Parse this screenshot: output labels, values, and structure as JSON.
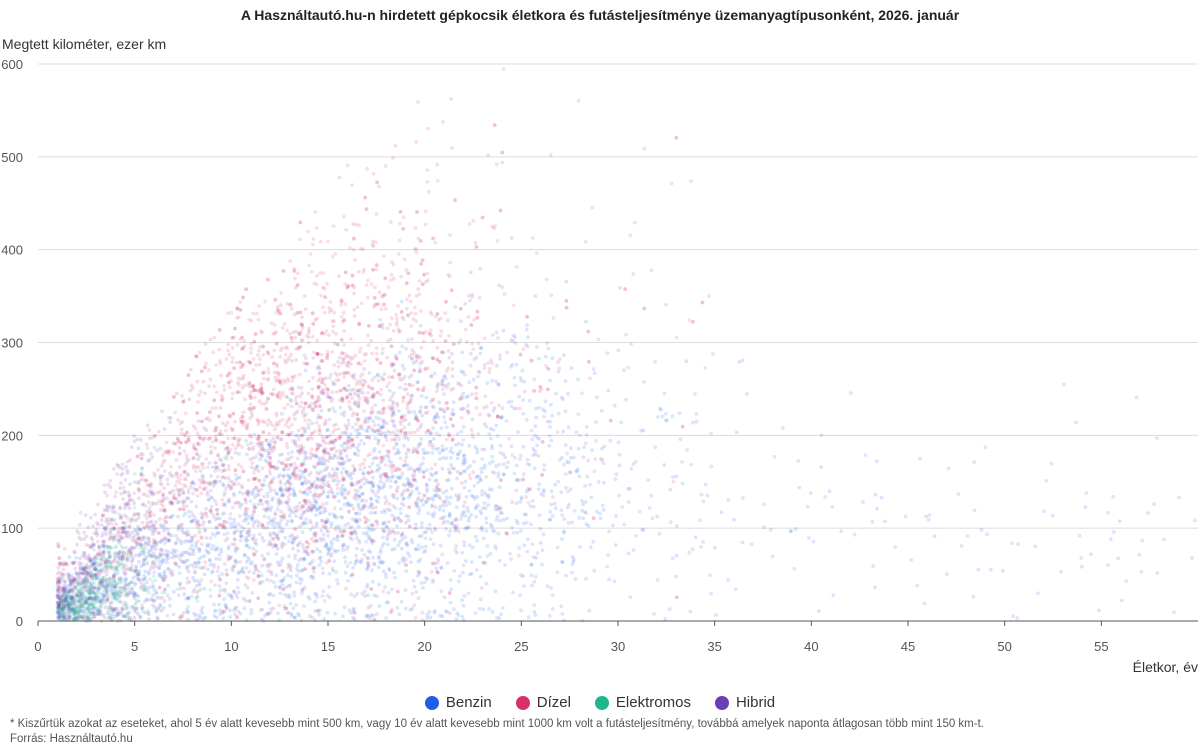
{
  "chart_data": {
    "type": "scatter",
    "title": "A Használtautó.hu-n hirdetett gépkocsik életkora és futásteljesítménye üzemanyagtípusonként, 2026. január",
    "xlabel": "Életkor, év",
    "ylabel": "Megtett kilométer, ezer km",
    "xlim": [
      0,
      60
    ],
    "ylim": [
      0,
      600
    ],
    "x_ticks": [
      "0",
      "5",
      "10",
      "15",
      "20",
      "25",
      "30",
      "35",
      "40",
      "45",
      "50",
      "55"
    ],
    "y_ticks": [
      "0",
      "100",
      "200",
      "300",
      "400",
      "500",
      "600"
    ],
    "grid": "horizontal",
    "legend_position": "bottom",
    "series": [
      {
        "name": "Benzin",
        "color": "#1f5fe6",
        "distribution": {
          "x_range": [
            1,
            60
          ],
          "x_peak": 16,
          "x_spread": 7,
          "y_center_at_peak": 130,
          "y_spread_at_peak": 70,
          "points_per_x": [
            {
              "x": 2,
              "y_center": 25
            },
            {
              "x": 5,
              "y_center": 50
            },
            {
              "x": 10,
              "y_center": 95
            },
            {
              "x": 15,
              "y_center": 125
            },
            {
              "x": 20,
              "y_center": 150
            },
            {
              "x": 25,
              "y_center": 150
            },
            {
              "x": 35,
              "y_center": 130
            },
            {
              "x": 50,
              "y_center": 100
            }
          ]
        }
      },
      {
        "name": "Dízel",
        "color": "#d6306f",
        "distribution": {
          "x_range": [
            1,
            35
          ],
          "x_peak": 14,
          "x_spread": 5,
          "y_center_at_peak": 215,
          "y_spread_at_peak": 90,
          "points_per_x": [
            {
              "x": 2,
              "y_center": 40
            },
            {
              "x": 5,
              "y_center": 110
            },
            {
              "x": 10,
              "y_center": 200
            },
            {
              "x": 15,
              "y_center": 230
            },
            {
              "x": 20,
              "y_center": 260
            },
            {
              "x": 25,
              "y_center": 270
            }
          ]
        }
      },
      {
        "name": "Elektromos",
        "color": "#1fb58f",
        "distribution": {
          "x_range": [
            1,
            10
          ],
          "x_peak": 3,
          "x_spread": 1.5,
          "y_center_at_peak": 30,
          "y_spread_at_peak": 20,
          "points_per_x": [
            {
              "x": 1,
              "y_center": 10
            },
            {
              "x": 3,
              "y_center": 30
            },
            {
              "x": 5,
              "y_center": 55
            },
            {
              "x": 8,
              "y_center": 80
            }
          ]
        }
      },
      {
        "name": "Hibrid",
        "color": "#6a3fb5",
        "distribution": {
          "x_range": [
            1,
            15
          ],
          "x_peak": 4,
          "x_spread": 2,
          "y_center_at_peak": 60,
          "y_spread_at_peak": 40,
          "points_per_x": [
            {
              "x": 1,
              "y_center": 15
            },
            {
              "x": 3,
              "y_center": 55
            },
            {
              "x": 5,
              "y_center": 90
            },
            {
              "x": 10,
              "y_center": 150
            }
          ]
        }
      }
    ]
  },
  "legend": [
    {
      "label": "Benzin",
      "color": "#1f5fe6"
    },
    {
      "label": "Dízel",
      "color": "#d6306f"
    },
    {
      "label": "Elektromos",
      "color": "#1fb58f"
    },
    {
      "label": "Hibrid",
      "color": "#6a3fb5"
    }
  ],
  "footnote": "* Kiszűrtük azokat az eseteket, ahol 5 év alatt kevesebb mint 500 km, vagy 10 év alatt kevesebb mint 1000 km volt a futásteljesítmény, továbbá amelyek naponta átlagosan több mint 150 km-t.",
  "source": "Forrás: Használtautó.hu"
}
